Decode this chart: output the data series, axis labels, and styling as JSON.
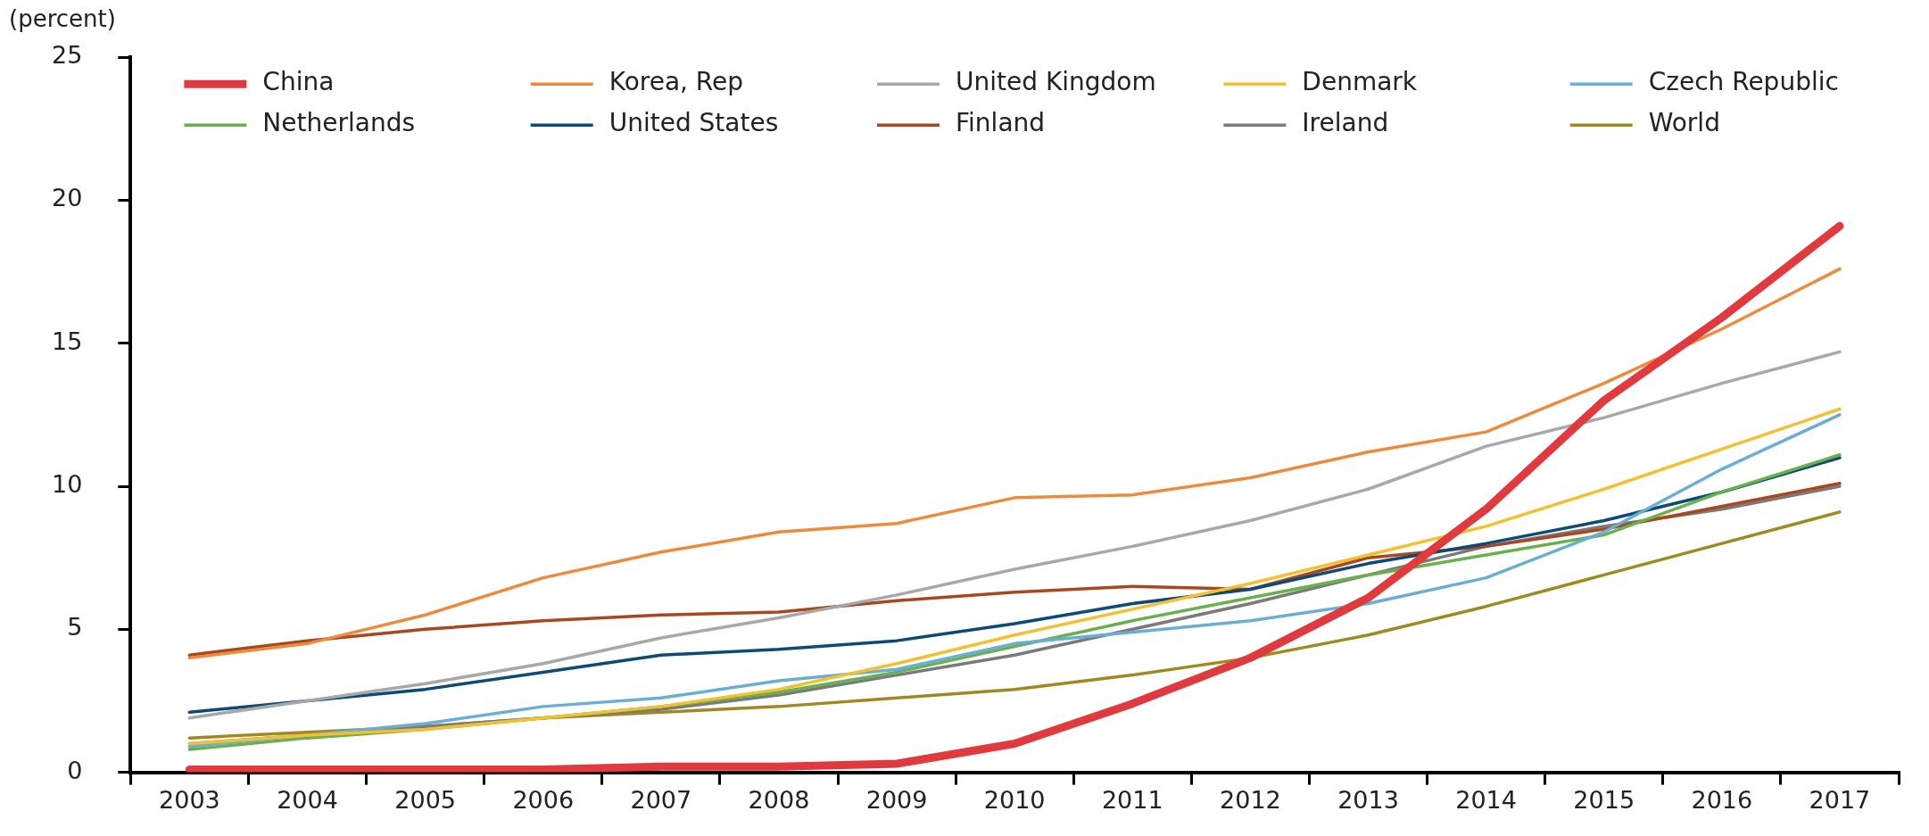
{
  "chart_data": {
    "type": "line",
    "ylabel": "(percent)",
    "categories": [
      "2003",
      "2004",
      "2005",
      "2006",
      "2007",
      "2008",
      "2009",
      "2010",
      "2011",
      "2012",
      "2013",
      "2014",
      "2015",
      "2016",
      "2017"
    ],
    "ylim": [
      0,
      25
    ],
    "yticks": [
      0,
      5,
      10,
      15,
      20,
      25
    ],
    "grid": false,
    "legend": "top",
    "marker": "none",
    "line_style": "solid",
    "series": [
      {
        "name": "China",
        "color": "#e03a3e",
        "values": [
          0.1,
          0.1,
          0.1,
          0.1,
          0.2,
          0.2,
          0.3,
          1.0,
          2.4,
          4.0,
          6.1,
          9.2,
          13.0,
          15.9,
          19.1
        ]
      },
      {
        "name": "Korea, Rep",
        "color": "#ee8a3c",
        "values": [
          4.0,
          4.5,
          5.5,
          6.8,
          7.7,
          8.4,
          8.7,
          9.6,
          9.7,
          10.3,
          11.2,
          11.9,
          13.6,
          15.5,
          17.6
        ]
      },
      {
        "name": "United Kingdom",
        "color": "#a8a8a8",
        "values": [
          1.9,
          2.5,
          3.1,
          3.8,
          4.7,
          5.4,
          6.2,
          7.1,
          7.9,
          8.8,
          9.9,
          11.4,
          12.4,
          13.6,
          14.7
        ]
      },
      {
        "name": "Denmark",
        "color": "#f4c030",
        "values": [
          1.0,
          1.3,
          1.5,
          1.9,
          2.3,
          2.9,
          3.8,
          4.8,
          5.7,
          6.6,
          7.6,
          8.6,
          9.9,
          11.3,
          12.7
        ]
      },
      {
        "name": "Czech Republic",
        "color": "#6aaed6",
        "values": [
          0.9,
          1.3,
          1.7,
          2.3,
          2.6,
          3.2,
          3.6,
          4.5,
          4.9,
          5.3,
          5.9,
          6.8,
          8.4,
          10.6,
          12.5
        ]
      },
      {
        "name": "Netherlands",
        "color": "#6ab04c",
        "values": [
          0.8,
          1.2,
          1.5,
          1.9,
          2.3,
          2.8,
          3.5,
          4.4,
          5.3,
          6.1,
          6.9,
          7.6,
          8.3,
          9.8,
          11.1
        ]
      },
      {
        "name": "United States",
        "color": "#0d4a78",
        "values": [
          2.1,
          2.5,
          2.9,
          3.5,
          4.1,
          4.3,
          4.6,
          5.2,
          5.9,
          6.4,
          7.3,
          8.0,
          8.8,
          9.8,
          11.0
        ]
      },
      {
        "name": "Finland",
        "color": "#a9471e",
        "values": [
          4.1,
          4.6,
          5.0,
          5.3,
          5.5,
          5.6,
          6.0,
          6.3,
          6.5,
          6.4,
          7.5,
          7.9,
          8.5,
          9.3,
          10.1
        ]
      },
      {
        "name": "Ireland",
        "color": "#7a7a7a",
        "values": [
          1.0,
          1.3,
          1.6,
          1.9,
          2.2,
          2.7,
          3.4,
          4.1,
          5.0,
          5.9,
          6.9,
          7.9,
          8.6,
          9.2,
          10.0
        ]
      },
      {
        "name": "World",
        "color": "#a08a20",
        "values": [
          1.2,
          1.4,
          1.6,
          1.9,
          2.1,
          2.3,
          2.6,
          2.9,
          3.4,
          4.0,
          4.8,
          5.8,
          6.9,
          8.0,
          9.1
        ]
      }
    ]
  }
}
